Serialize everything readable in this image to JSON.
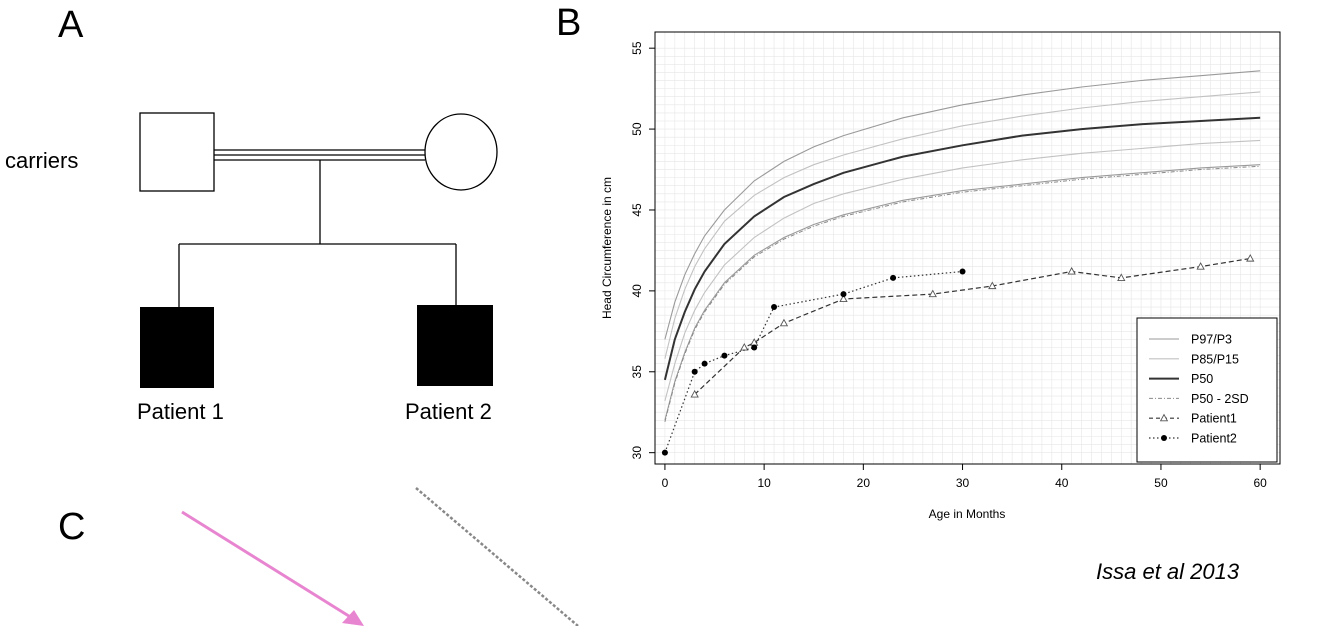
{
  "panels": {
    "a_label": "A",
    "b_label": "B",
    "c_label": "C"
  },
  "pedigree": {
    "parents_label": "carriers",
    "child1_label": "Patient 1",
    "child2_label": "Patient 2"
  },
  "citation": "Issa et al 2013",
  "colors": {
    "pink_arrow": "#e885d0",
    "dashed_line": "#888888",
    "filled": "#000000"
  },
  "chart_data": {
    "type": "line",
    "xlabel": "Age in Months",
    "ylabel": "Head Circumference in cm",
    "xlim": [
      -1,
      62
    ],
    "ylim": [
      29.3,
      56
    ],
    "xticks": [
      0,
      10,
      20,
      30,
      40,
      50,
      60
    ],
    "yticks": [
      30,
      35,
      40,
      45,
      50,
      55
    ],
    "grid": true,
    "legend_position": "bottom-right",
    "percentile_curves": [
      {
        "name": "P97/P3",
        "style": "thin-gray",
        "lines": [
          {
            "x": [
              0,
              1,
              2,
              3,
              4,
              6,
              9,
              12,
              15,
              18,
              24,
              30,
              36,
              42,
              48,
              54,
              60
            ],
            "y": [
              37,
              39.3,
              41,
              42.3,
              43.4,
              45,
              46.8,
              48,
              48.9,
              49.6,
              50.7,
              51.5,
              52.1,
              52.6,
              53,
              53.3,
              53.6
            ]
          },
          {
            "x": [
              0,
              1,
              2,
              3,
              4,
              6,
              9,
              12,
              15,
              18,
              24,
              30,
              36,
              42,
              48,
              54,
              60
            ],
            "y": [
              32,
              34.4,
              36.2,
              37.7,
              38.8,
              40.5,
              42.2,
              43.3,
              44.1,
              44.7,
              45.6,
              46.2,
              46.6,
              47,
              47.3,
              47.6,
              47.8
            ]
          }
        ]
      },
      {
        "name": "P85/P15",
        "style": "lighter-gray",
        "lines": [
          {
            "x": [
              0,
              1,
              2,
              3,
              4,
              6,
              9,
              12,
              15,
              18,
              24,
              30,
              36,
              42,
              48,
              54,
              60
            ],
            "y": [
              35.8,
              38.3,
              40.1,
              41.5,
              42.6,
              44.3,
              45.9,
              47,
              47.8,
              48.4,
              49.4,
              50.2,
              50.8,
              51.3,
              51.7,
              52,
              52.3
            ]
          },
          {
            "x": [
              0,
              1,
              2,
              3,
              4,
              6,
              9,
              12,
              15,
              18,
              24,
              30,
              36,
              42,
              48,
              54,
              60
            ],
            "y": [
              33.2,
              35.5,
              37.4,
              38.8,
              39.9,
              41.6,
              43.3,
              44.5,
              45.4,
              46,
              46.9,
              47.6,
              48.1,
              48.5,
              48.8,
              49.1,
              49.3
            ]
          }
        ]
      },
      {
        "name": "P50",
        "style": "thick-dark",
        "lines": [
          {
            "x": [
              0,
              1,
              2,
              3,
              4,
              6,
              9,
              12,
              15,
              18,
              24,
              30,
              36,
              42,
              48,
              54,
              60
            ],
            "y": [
              34.5,
              37,
              38.7,
              40.1,
              41.2,
              42.9,
              44.6,
              45.8,
              46.6,
              47.3,
              48.3,
              49,
              49.6,
              50,
              50.3,
              50.5,
              50.7
            ]
          }
        ]
      },
      {
        "name": "P50 - 2SD",
        "style": "dashed-dot-gray",
        "lines": [
          {
            "x": [
              0,
              1,
              2,
              3,
              4,
              6,
              9,
              12,
              15,
              18,
              24,
              30,
              36,
              42,
              48,
              54,
              60
            ],
            "y": [
              31.9,
              34.3,
              36.1,
              37.6,
              38.7,
              40.4,
              42.1,
              43.2,
              44,
              44.6,
              45.5,
              46.1,
              46.5,
              46.9,
              47.2,
              47.5,
              47.7
            ]
          }
        ]
      }
    ],
    "series": [
      {
        "name": "Patient1",
        "marker": "open-triangle",
        "line": "dashed",
        "x": [
          3,
          8,
          9,
          12,
          18,
          27,
          33,
          41,
          46,
          54,
          59
        ],
        "y": [
          33.6,
          36.5,
          36.8,
          38,
          39.5,
          39.8,
          40.3,
          41.2,
          40.8,
          41.5,
          42
        ]
      },
      {
        "name": "Patient2",
        "marker": "filled-circle",
        "line": "dotted",
        "x": [
          0,
          3,
          4,
          6,
          9,
          11,
          18,
          23,
          30
        ],
        "y": [
          30,
          35,
          35.5,
          36,
          36.5,
          39,
          39.8,
          40.8,
          41.2
        ]
      }
    ]
  }
}
